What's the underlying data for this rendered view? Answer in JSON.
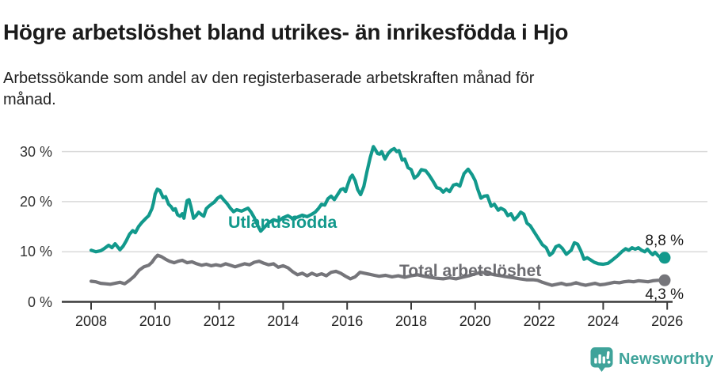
{
  "header": {
    "title": "Högre arbetslöshet bland utrikes- än inrikesfödda i Hjo",
    "subtitle": "Arbetssökande som andel av den registerbaserade arbetskraften månad för månad."
  },
  "chart_data": {
    "type": "line",
    "title": "Högre arbetslöshet bland utrikes- än inrikesfödda i Hjo",
    "xlabel": "",
    "ylabel": "",
    "grid": true,
    "legend_position": "inline-labels-on-lines",
    "x_axis": {
      "range": [
        2007.6,
        2027.2
      ],
      "ticks": [
        2008,
        2010,
        2012,
        2014,
        2016,
        2018,
        2020,
        2022,
        2024,
        2026
      ],
      "tick_labels": [
        "2008",
        "2010",
        "2012",
        "2014",
        "2016",
        "2018",
        "2020",
        "2022",
        "2024",
        "2026"
      ]
    },
    "y_axis": {
      "range": [
        0,
        33
      ],
      "unit": "%",
      "ticks": [
        0,
        10,
        20,
        30
      ],
      "tick_labels": [
        "0 %",
        "10 %",
        "20 %",
        "30 %"
      ]
    },
    "colors": {
      "grid": "#dadada",
      "axis": "#3a3a3a",
      "utlandsfodda": "#12998c",
      "total": "#75757a",
      "total_label": "#6c6c71",
      "value_label": "#1a1a1a"
    },
    "series": [
      {
        "name": "Utlandsfödda",
        "end_value": 8.8,
        "end_label": "8,8 %",
        "points": [
          [
            2008.0,
            10.3
          ],
          [
            2008.15,
            10.0
          ],
          [
            2008.3,
            10.2
          ],
          [
            2008.4,
            10.6
          ],
          [
            2008.55,
            11.3
          ],
          [
            2008.65,
            10.8
          ],
          [
            2008.75,
            11.6
          ],
          [
            2008.9,
            10.4
          ],
          [
            2009.0,
            11.1
          ],
          [
            2009.1,
            12.2
          ],
          [
            2009.2,
            13.5
          ],
          [
            2009.3,
            14.2
          ],
          [
            2009.38,
            13.8
          ],
          [
            2009.48,
            15.0
          ],
          [
            2009.58,
            15.8
          ],
          [
            2009.7,
            16.6
          ],
          [
            2009.8,
            17.2
          ],
          [
            2009.9,
            18.6
          ],
          [
            2009.95,
            19.8
          ],
          [
            2010.0,
            21.5
          ],
          [
            2010.07,
            22.5
          ],
          [
            2010.15,
            22.2
          ],
          [
            2010.25,
            20.8
          ],
          [
            2010.33,
            21.0
          ],
          [
            2010.42,
            19.5
          ],
          [
            2010.5,
            19.0
          ],
          [
            2010.57,
            18.3
          ],
          [
            2010.63,
            18.6
          ],
          [
            2010.7,
            17.4
          ],
          [
            2010.78,
            17.1
          ],
          [
            2010.85,
            17.6
          ],
          [
            2010.9,
            16.7
          ],
          [
            2010.95,
            18.6
          ],
          [
            2011.0,
            20.2
          ],
          [
            2011.06,
            20.4
          ],
          [
            2011.12,
            19.0
          ],
          [
            2011.2,
            16.7
          ],
          [
            2011.28,
            17.2
          ],
          [
            2011.36,
            17.9
          ],
          [
            2011.45,
            17.4
          ],
          [
            2011.52,
            17.1
          ],
          [
            2011.6,
            18.6
          ],
          [
            2011.68,
            19.1
          ],
          [
            2011.76,
            19.5
          ],
          [
            2011.85,
            19.9
          ],
          [
            2011.95,
            20.7
          ],
          [
            2012.05,
            21.1
          ],
          [
            2012.15,
            20.3
          ],
          [
            2012.25,
            19.6
          ],
          [
            2012.35,
            18.7
          ],
          [
            2012.45,
            18.0
          ],
          [
            2012.55,
            18.4
          ],
          [
            2012.7,
            18.1
          ],
          [
            2012.8,
            18.4
          ],
          [
            2012.9,
            18.7
          ],
          [
            2013.0,
            17.9
          ],
          [
            2013.1,
            16.8
          ],
          [
            2013.2,
            15.3
          ],
          [
            2013.3,
            14.1
          ],
          [
            2013.4,
            14.8
          ],
          [
            2013.55,
            15.8
          ],
          [
            2013.7,
            16.4
          ],
          [
            2013.85,
            16.1
          ],
          [
            2014.0,
            16.8
          ],
          [
            2014.15,
            17.2
          ],
          [
            2014.3,
            16.6
          ],
          [
            2014.45,
            16.9
          ],
          [
            2014.6,
            17.3
          ],
          [
            2014.75,
            17.0
          ],
          [
            2014.9,
            17.5
          ],
          [
            2015.0,
            17.9
          ],
          [
            2015.1,
            18.6
          ],
          [
            2015.2,
            19.5
          ],
          [
            2015.3,
            19.3
          ],
          [
            2015.4,
            20.6
          ],
          [
            2015.5,
            21.1
          ],
          [
            2015.6,
            20.4
          ],
          [
            2015.7,
            21.4
          ],
          [
            2015.8,
            22.4
          ],
          [
            2015.88,
            22.6
          ],
          [
            2015.95,
            22.0
          ],
          [
            2016.02,
            23.4
          ],
          [
            2016.1,
            24.8
          ],
          [
            2016.16,
            25.3
          ],
          [
            2016.25,
            24.2
          ],
          [
            2016.33,
            22.4
          ],
          [
            2016.42,
            21.4
          ],
          [
            2016.52,
            23.0
          ],
          [
            2016.62,
            26.0
          ],
          [
            2016.72,
            28.8
          ],
          [
            2016.82,
            31.0
          ],
          [
            2016.88,
            30.4
          ],
          [
            2016.95,
            29.6
          ],
          [
            2017.02,
            29.5
          ],
          [
            2017.08,
            30.0
          ],
          [
            2017.18,
            28.5
          ],
          [
            2017.28,
            29.6
          ],
          [
            2017.38,
            30.3
          ],
          [
            2017.47,
            30.6
          ],
          [
            2017.55,
            30.0
          ],
          [
            2017.62,
            30.2
          ],
          [
            2017.72,
            28.3
          ],
          [
            2017.8,
            28.5
          ],
          [
            2017.9,
            26.8
          ],
          [
            2018.0,
            26.4
          ],
          [
            2018.1,
            24.7
          ],
          [
            2018.2,
            25.2
          ],
          [
            2018.32,
            26.4
          ],
          [
            2018.45,
            26.2
          ],
          [
            2018.55,
            25.4
          ],
          [
            2018.68,
            24.1
          ],
          [
            2018.8,
            22.8
          ],
          [
            2018.9,
            22.6
          ],
          [
            2019.0,
            21.9
          ],
          [
            2019.1,
            22.5
          ],
          [
            2019.2,
            22.0
          ],
          [
            2019.32,
            23.3
          ],
          [
            2019.42,
            23.5
          ],
          [
            2019.52,
            23.1
          ],
          [
            2019.65,
            25.6
          ],
          [
            2019.78,
            26.5
          ],
          [
            2019.9,
            25.4
          ],
          [
            2020.0,
            24.2
          ],
          [
            2020.08,
            22.5
          ],
          [
            2020.18,
            20.7
          ],
          [
            2020.28,
            21.1
          ],
          [
            2020.38,
            21.2
          ],
          [
            2020.5,
            19.1
          ],
          [
            2020.6,
            19.5
          ],
          [
            2020.72,
            18.3
          ],
          [
            2020.8,
            18.7
          ],
          [
            2020.92,
            18.3
          ],
          [
            2021.02,
            17.2
          ],
          [
            2021.12,
            17.6
          ],
          [
            2021.22,
            16.4
          ],
          [
            2021.32,
            17.0
          ],
          [
            2021.42,
            17.9
          ],
          [
            2021.52,
            17.5
          ],
          [
            2021.62,
            15.7
          ],
          [
            2021.72,
            15.2
          ],
          [
            2021.85,
            13.9
          ],
          [
            2022.0,
            12.4
          ],
          [
            2022.1,
            11.4
          ],
          [
            2022.22,
            10.8
          ],
          [
            2022.33,
            9.3
          ],
          [
            2022.42,
            9.8
          ],
          [
            2022.52,
            11.0
          ],
          [
            2022.62,
            11.3
          ],
          [
            2022.72,
            10.7
          ],
          [
            2022.85,
            9.5
          ],
          [
            2023.0,
            10.3
          ],
          [
            2023.1,
            11.8
          ],
          [
            2023.2,
            11.5
          ],
          [
            2023.3,
            10.2
          ],
          [
            2023.4,
            8.5
          ],
          [
            2023.5,
            8.8
          ],
          [
            2023.6,
            8.4
          ],
          [
            2023.72,
            7.9
          ],
          [
            2023.85,
            7.6
          ],
          [
            2024.0,
            7.5
          ],
          [
            2024.15,
            7.7
          ],
          [
            2024.3,
            8.4
          ],
          [
            2024.45,
            9.2
          ],
          [
            2024.58,
            10.0
          ],
          [
            2024.7,
            10.6
          ],
          [
            2024.8,
            10.3
          ],
          [
            2024.9,
            10.8
          ],
          [
            2025.0,
            10.5
          ],
          [
            2025.1,
            10.8
          ],
          [
            2025.2,
            10.3
          ],
          [
            2025.3,
            10.0
          ],
          [
            2025.38,
            10.5
          ],
          [
            2025.48,
            9.8
          ],
          [
            2025.55,
            9.4
          ],
          [
            2025.62,
            9.9
          ],
          [
            2025.72,
            9.2
          ],
          [
            2025.82,
            8.7
          ],
          [
            2025.92,
            8.8
          ]
        ]
      },
      {
        "name": "Total arbetslöshet",
        "end_value": 4.3,
        "end_label": "4,3 %",
        "points": [
          [
            2008.0,
            4.1
          ],
          [
            2008.15,
            4.0
          ],
          [
            2008.3,
            3.7
          ],
          [
            2008.45,
            3.6
          ],
          [
            2008.6,
            3.5
          ],
          [
            2008.75,
            3.7
          ],
          [
            2008.9,
            3.9
          ],
          [
            2009.05,
            3.6
          ],
          [
            2009.2,
            4.3
          ],
          [
            2009.35,
            5.1
          ],
          [
            2009.5,
            6.3
          ],
          [
            2009.65,
            7.0
          ],
          [
            2009.8,
            7.3
          ],
          [
            2009.9,
            7.9
          ],
          [
            2010.0,
            8.8
          ],
          [
            2010.08,
            9.3
          ],
          [
            2010.2,
            9.0
          ],
          [
            2010.33,
            8.5
          ],
          [
            2010.45,
            8.1
          ],
          [
            2010.6,
            7.8
          ],
          [
            2010.72,
            8.1
          ],
          [
            2010.85,
            8.3
          ],
          [
            2011.0,
            7.8
          ],
          [
            2011.15,
            8.0
          ],
          [
            2011.3,
            7.6
          ],
          [
            2011.45,
            7.3
          ],
          [
            2011.6,
            7.5
          ],
          [
            2011.75,
            7.2
          ],
          [
            2011.9,
            7.4
          ],
          [
            2012.05,
            7.2
          ],
          [
            2012.2,
            7.6
          ],
          [
            2012.35,
            7.3
          ],
          [
            2012.5,
            7.0
          ],
          [
            2012.65,
            7.3
          ],
          [
            2012.8,
            7.6
          ],
          [
            2012.95,
            7.4
          ],
          [
            2013.1,
            7.9
          ],
          [
            2013.25,
            8.1
          ],
          [
            2013.4,
            7.7
          ],
          [
            2013.55,
            7.4
          ],
          [
            2013.7,
            7.6
          ],
          [
            2013.85,
            6.9
          ],
          [
            2014.0,
            7.2
          ],
          [
            2014.15,
            6.8
          ],
          [
            2014.3,
            6.0
          ],
          [
            2014.45,
            5.4
          ],
          [
            2014.6,
            5.7
          ],
          [
            2014.75,
            5.2
          ],
          [
            2014.9,
            5.7
          ],
          [
            2015.05,
            5.3
          ],
          [
            2015.2,
            5.6
          ],
          [
            2015.35,
            5.2
          ],
          [
            2015.5,
            5.9
          ],
          [
            2015.65,
            6.1
          ],
          [
            2015.8,
            5.7
          ],
          [
            2015.95,
            5.1
          ],
          [
            2016.1,
            4.6
          ],
          [
            2016.25,
            5.0
          ],
          [
            2016.4,
            5.9
          ],
          [
            2016.55,
            5.7
          ],
          [
            2016.7,
            5.5
          ],
          [
            2016.85,
            5.3
          ],
          [
            2017.0,
            5.1
          ],
          [
            2017.2,
            5.3
          ],
          [
            2017.4,
            5.0
          ],
          [
            2017.6,
            5.2
          ],
          [
            2017.8,
            4.9
          ],
          [
            2018.0,
            5.2
          ],
          [
            2018.2,
            5.4
          ],
          [
            2018.4,
            5.1
          ],
          [
            2018.6,
            4.9
          ],
          [
            2018.8,
            4.7
          ],
          [
            2019.0,
            4.6
          ],
          [
            2019.2,
            4.8
          ],
          [
            2019.4,
            4.6
          ],
          [
            2019.6,
            4.9
          ],
          [
            2019.8,
            5.2
          ],
          [
            2020.0,
            5.6
          ],
          [
            2020.2,
            5.9
          ],
          [
            2020.4,
            5.7
          ],
          [
            2020.6,
            5.4
          ],
          [
            2020.8,
            5.2
          ],
          [
            2021.0,
            5.0
          ],
          [
            2021.2,
            4.8
          ],
          [
            2021.4,
            4.6
          ],
          [
            2021.6,
            4.4
          ],
          [
            2021.8,
            4.4
          ],
          [
            2021.95,
            4.3
          ],
          [
            2022.1,
            3.9
          ],
          [
            2022.25,
            3.6
          ],
          [
            2022.4,
            3.3
          ],
          [
            2022.55,
            3.5
          ],
          [
            2022.7,
            3.7
          ],
          [
            2022.85,
            3.4
          ],
          [
            2023.0,
            3.5
          ],
          [
            2023.15,
            3.8
          ],
          [
            2023.3,
            3.5
          ],
          [
            2023.45,
            3.3
          ],
          [
            2023.6,
            3.5
          ],
          [
            2023.75,
            3.7
          ],
          [
            2023.9,
            3.4
          ],
          [
            2024.05,
            3.5
          ],
          [
            2024.2,
            3.7
          ],
          [
            2024.35,
            3.9
          ],
          [
            2024.5,
            3.8
          ],
          [
            2024.65,
            4.0
          ],
          [
            2024.8,
            4.1
          ],
          [
            2024.95,
            4.0
          ],
          [
            2025.1,
            4.2
          ],
          [
            2025.25,
            4.1
          ],
          [
            2025.4,
            4.0
          ],
          [
            2025.55,
            4.2
          ],
          [
            2025.7,
            4.3
          ],
          [
            2025.92,
            4.3
          ]
        ]
      }
    ]
  },
  "footer": {
    "brand": "Newsworthy",
    "brand_color": "#3fa39a",
    "logo_icon": "newsworthy-bubble-barchart-icon"
  }
}
